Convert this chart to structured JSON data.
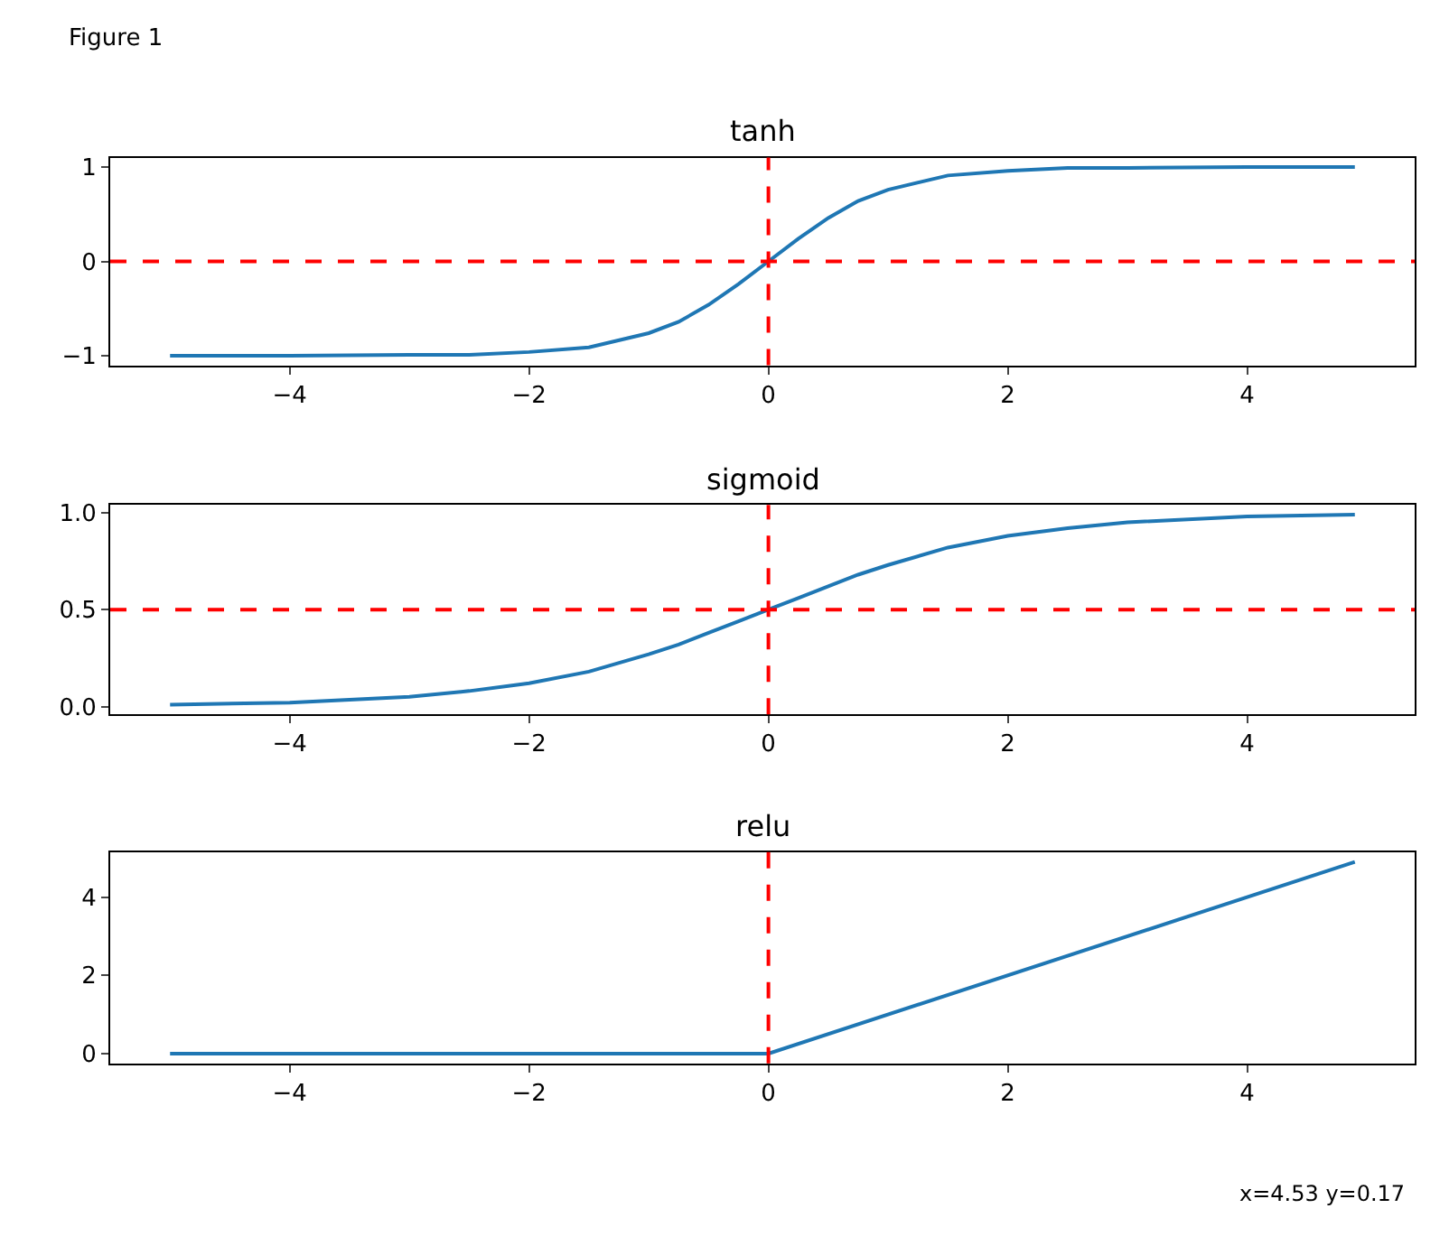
{
  "chart_data": [
    {
      "type": "line",
      "title": "tanh",
      "annotations": [
        "Figure 1"
      ],
      "xlim": [
        -5.5,
        5.4
      ],
      "xticks": [
        -4,
        -2,
        0,
        2,
        4
      ],
      "ylim": [
        -1.1,
        1.1
      ],
      "yticks": [
        -1,
        0,
        1
      ],
      "series": [
        {
          "color": "#1f77b4",
          "x": [
            -5,
            -4,
            -3,
            -2.5,
            -2,
            -1.5,
            -1,
            -0.75,
            -0.5,
            -0.25,
            0,
            0.25,
            0.5,
            0.75,
            1,
            1.5,
            2,
            2.5,
            3,
            4,
            4.9
          ],
          "values": [
            -1.0,
            -1.0,
            -0.99,
            -0.99,
            -0.96,
            -0.91,
            -0.76,
            -0.64,
            -0.46,
            -0.24,
            0,
            0.24,
            0.46,
            0.64,
            0.76,
            0.91,
            0.96,
            0.99,
            0.99,
            1.0,
            1.0
          ]
        }
      ],
      "ref_lines": [
        {
          "axis": "x",
          "value": 0,
          "color": "#ff0000",
          "line_style": "dashed"
        },
        {
          "axis": "y",
          "value": 0,
          "color": "#ff0000",
          "line_style": "dashed"
        }
      ]
    },
    {
      "type": "line",
      "title": "sigmoid",
      "xlim": [
        -5.5,
        5.4
      ],
      "xticks": [
        -4,
        -2,
        0,
        2,
        4
      ],
      "ylim": [
        -0.04,
        1.04
      ],
      "yticks": [
        {
          "value": 0,
          "label": "0.0"
        },
        0.5,
        {
          "value": 1,
          "label": "1.0"
        }
      ],
      "series": [
        {
          "color": "#1f77b4",
          "x": [
            -5,
            -4,
            -3,
            -2.5,
            -2,
            -1.5,
            -1,
            -0.75,
            -0.5,
            -0.25,
            0,
            0.25,
            0.5,
            0.75,
            1,
            1.5,
            2,
            2.5,
            3,
            4,
            4.9
          ],
          "values": [
            0.01,
            0.02,
            0.05,
            0.08,
            0.12,
            0.18,
            0.27,
            0.32,
            0.38,
            0.44,
            0.5,
            0.56,
            0.62,
            0.68,
            0.73,
            0.82,
            0.88,
            0.92,
            0.95,
            0.98,
            0.99
          ]
        }
      ],
      "ref_lines": [
        {
          "axis": "x",
          "value": 0,
          "color": "#ff0000",
          "line_style": "dashed"
        },
        {
          "axis": "y",
          "value": 0.5,
          "color": "#ff0000",
          "line_style": "dashed"
        }
      ]
    },
    {
      "type": "line",
      "title": "relu",
      "annotations": [
        "x=4.53 y=0.17"
      ],
      "xlim": [
        -5.5,
        5.4
      ],
      "xticks": [
        -4,
        -2,
        0,
        2,
        4
      ],
      "ylim": [
        -0.25,
        5.15
      ],
      "yticks": [
        0,
        2,
        4
      ],
      "series": [
        {
          "color": "#1f77b4",
          "x": [
            -5,
            0,
            4.9
          ],
          "values": [
            0,
            0,
            4.9
          ]
        }
      ],
      "ref_lines": [
        {
          "axis": "x",
          "value": 0,
          "color": "#ff0000",
          "line_style": "dashed"
        }
      ]
    }
  ]
}
